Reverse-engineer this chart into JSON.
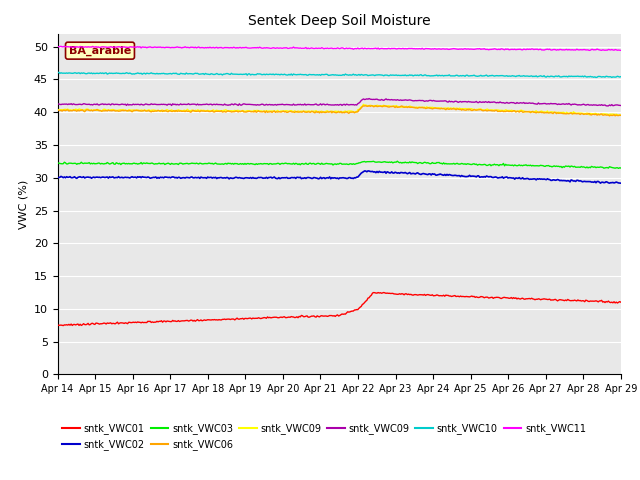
{
  "title": "Sentek Deep Soil Moisture",
  "ylabel": "VWC (%)",
  "ylim": [
    0,
    52
  ],
  "yticks": [
    0,
    5,
    10,
    15,
    20,
    25,
    30,
    35,
    40,
    45,
    50
  ],
  "x_labels": [
    "Apr 14",
    "Apr 15",
    "Apr 16",
    "Apr 17",
    "Apr 18",
    "Apr 19",
    "Apr 20",
    "Apr 21",
    "Apr 22",
    "Apr 23",
    "Apr 24",
    "Apr 25",
    "Apr 26",
    "Apr 27",
    "Apr 28",
    "Apr 29"
  ],
  "annotation_text": "BA_arable",
  "annotation_color": "#8B0000",
  "annotation_bg": "#FFFFC0",
  "background_color": "#E8E8E8",
  "grid_color": "#FFFFFF",
  "series_colors": {
    "VWC01": "#FF0000",
    "VWC02": "#0000CC",
    "VWC03": "#00EE00",
    "VWC06": "#FFA500",
    "VWC09_yellow": "#FFFF00",
    "VWC09_purple": "#AA00AA",
    "VWC10": "#00CCCC",
    "VWC11": "#FF00FF"
  },
  "legend_entries": [
    [
      "#FF0000",
      "sntk_VWC01"
    ],
    [
      "#0000CC",
      "sntk_VWC02"
    ],
    [
      "#00EE00",
      "sntk_VWC03"
    ],
    [
      "#FFA500",
      "sntk_VWC06"
    ],
    [
      "#FFFF00",
      "sntk_VWC09"
    ],
    [
      "#AA00AA",
      "sntk_VWC09"
    ],
    [
      "#00CCCC",
      "sntk_VWC10"
    ],
    [
      "#FF00FF",
      "sntk_VWC11"
    ]
  ]
}
